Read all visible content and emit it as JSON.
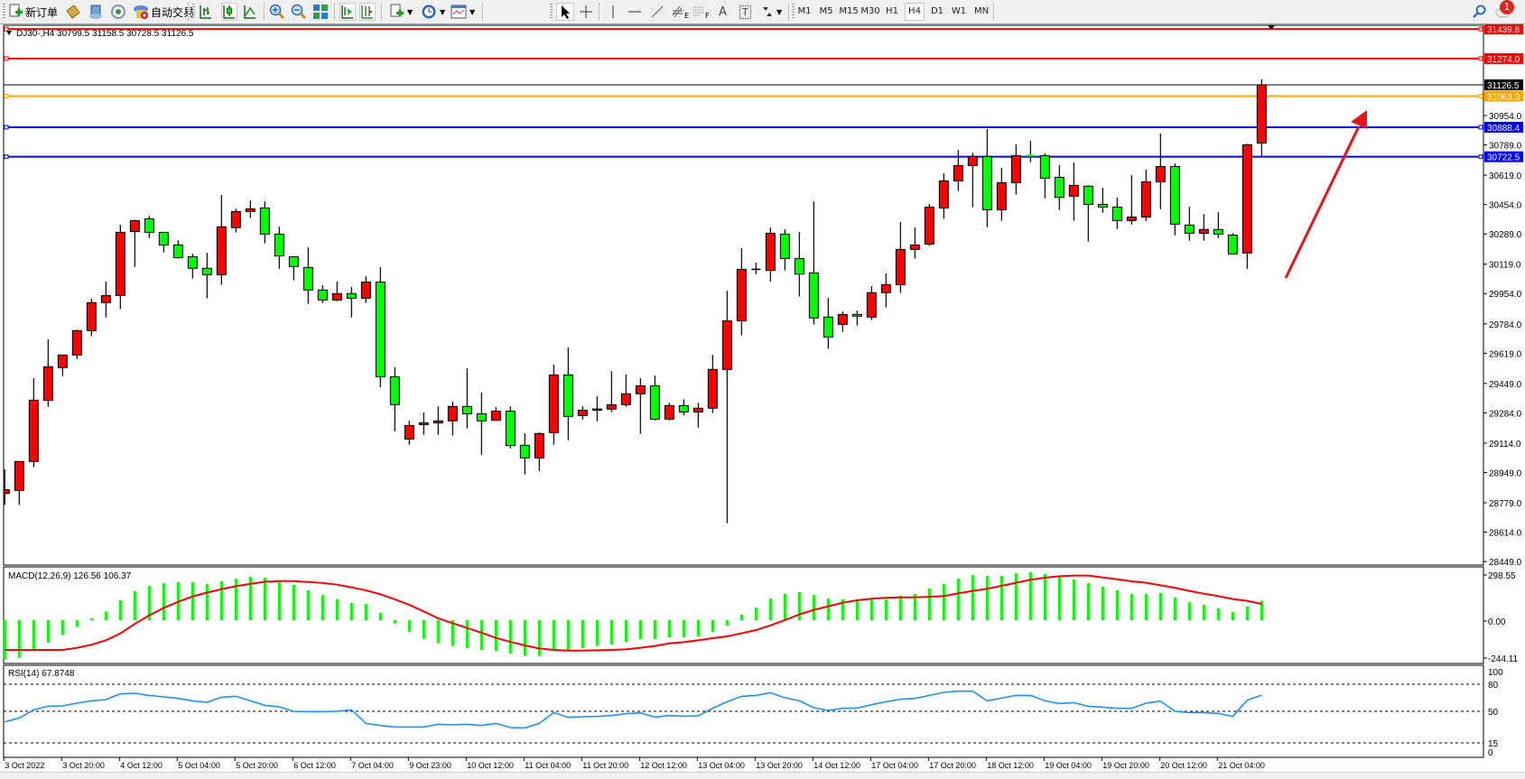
{
  "toolbar": {
    "new_order_label": "新订单",
    "auto_trading_label": "自动交易",
    "timeframes": [
      "M1",
      "M5",
      "M15",
      "M30",
      "H1",
      "H4",
      "D1",
      "W1",
      "MN"
    ],
    "active_timeframe": "H4",
    "fibo_e_label": "E",
    "fibo_f_label": "F",
    "text_tool_label": "A",
    "label_tool_label": "T",
    "notification_count": "1"
  },
  "chart_window": {
    "title": "DJ30-,H4  30799.5 31158.5 30728.5 31126.5",
    "macd_label": "MACD(12,26,9) 126.56 106.37",
    "rsi_label": "RSI(14) 67.8748"
  },
  "colors": {
    "bull_candle": "#ff0000",
    "bear_candle": "#00ff00",
    "macd_histogram": "#00ff00",
    "macd_signal": "#ff0000",
    "rsi_line": "#1e90ff",
    "arrow": "#e8141c"
  },
  "chart_data": [
    {
      "type": "candlestick",
      "symbol": "DJ30-",
      "timeframe": "H4",
      "ohlc_format": [
        "open",
        "high",
        "low",
        "close"
      ],
      "candles": [
        [
          28831,
          28967,
          28767,
          28853
        ],
        [
          28848,
          29011,
          28767,
          29011
        ],
        [
          29011,
          29479,
          28980,
          29355
        ],
        [
          29355,
          29697,
          29318,
          29543
        ],
        [
          29538,
          29609,
          29491,
          29609
        ],
        [
          29609,
          29752,
          29587,
          29746
        ],
        [
          29746,
          29925,
          29714,
          29903
        ],
        [
          29903,
          30021,
          29820,
          29943
        ],
        [
          29943,
          30341,
          29866,
          30298
        ],
        [
          30302,
          30369,
          30104,
          30364
        ],
        [
          30374,
          30390,
          30266,
          30298
        ],
        [
          30298,
          30298,
          30185,
          30227
        ],
        [
          30227,
          30254,
          30150,
          30156
        ],
        [
          30161,
          30178,
          30038,
          30096
        ],
        [
          30096,
          30183,
          29927,
          30060
        ],
        [
          30060,
          30508,
          30003,
          30329
        ],
        [
          30324,
          30430,
          30298,
          30415
        ],
        [
          30415,
          30477,
          30378,
          30430
        ],
        [
          30435,
          30472,
          30236,
          30288
        ],
        [
          30288,
          30330,
          30094,
          30166
        ],
        [
          30161,
          30161,
          30028,
          30106
        ],
        [
          30101,
          30214,
          29896,
          29974
        ],
        [
          29974,
          30001,
          29901,
          29918
        ],
        [
          29918,
          30021,
          29911,
          29954
        ],
        [
          29954,
          29992,
          29820,
          29928
        ],
        [
          29928,
          30052,
          29901,
          30019
        ],
        [
          30019,
          30102,
          29428,
          29487
        ],
        [
          29487,
          29540,
          29180,
          29330
        ],
        [
          29137,
          29240,
          29105,
          29213
        ],
        [
          29218,
          29286,
          29161,
          29228
        ],
        [
          29228,
          29321,
          29161,
          29239
        ],
        [
          29239,
          29347,
          29156,
          29320
        ],
        [
          29320,
          29534,
          29196,
          29279
        ],
        [
          29279,
          29398,
          29049,
          29239
        ],
        [
          29242,
          29316,
          29237,
          29294
        ],
        [
          29294,
          29321,
          29085,
          29100
        ],
        [
          29102,
          29169,
          28938,
          29031
        ],
        [
          29031,
          29173,
          28958,
          29168
        ],
        [
          29173,
          29555,
          29105,
          29497
        ],
        [
          29497,
          29651,
          29130,
          29264
        ],
        [
          29269,
          29321,
          29247,
          29299
        ],
        [
          29299,
          29377,
          29237,
          29306
        ],
        [
          29305,
          29519,
          29288,
          29330
        ],
        [
          29330,
          29499,
          29318,
          29391
        ],
        [
          29391,
          29479,
          29166,
          29436
        ],
        [
          29436,
          29494,
          29242,
          29249
        ],
        [
          29249,
          29340,
          29242,
          29325
        ],
        [
          29325,
          29360,
          29269,
          29289
        ],
        [
          29289,
          29340,
          29201,
          29310
        ],
        [
          29310,
          29610,
          29284,
          29528
        ],
        [
          29528,
          29970,
          28664,
          29801
        ],
        [
          29801,
          30209,
          29719,
          30090
        ],
        [
          30090,
          30128,
          30063,
          30090
        ],
        [
          30084,
          30325,
          30021,
          30293
        ],
        [
          30288,
          30315,
          30084,
          30151
        ],
        [
          30151,
          30300,
          29937,
          30063
        ],
        [
          30070,
          30472,
          29780,
          29817
        ],
        [
          29822,
          29930,
          29643,
          29710
        ],
        [
          29781,
          29854,
          29739,
          29837
        ],
        [
          29837,
          29859,
          29774,
          29827
        ],
        [
          29822,
          29996,
          29805,
          29959
        ],
        [
          29959,
          30067,
          29876,
          30004
        ],
        [
          30004,
          30356,
          29957,
          30202
        ],
        [
          30202,
          30325,
          30150,
          30227
        ],
        [
          30232,
          30457,
          30221,
          30440
        ],
        [
          30435,
          30630,
          30373,
          30587
        ],
        [
          30587,
          30761,
          30530,
          30673
        ],
        [
          30673,
          30746,
          30439,
          30724
        ],
        [
          30724,
          30878,
          30327,
          30425
        ],
        [
          30425,
          30660,
          30363,
          30577
        ],
        [
          30577,
          30792,
          30510,
          30729
        ],
        [
          30730,
          30812,
          30692,
          30729
        ],
        [
          30729,
          30741,
          30489,
          30602
        ],
        [
          30607,
          30675,
          30423,
          30494
        ],
        [
          30501,
          30690,
          30363,
          30562
        ],
        [
          30557,
          30562,
          30246,
          30455
        ],
        [
          30455,
          30548,
          30408,
          30440
        ],
        [
          30440,
          30493,
          30317,
          30364
        ],
        [
          30364,
          30619,
          30342,
          30384
        ],
        [
          30384,
          30650,
          30362,
          30582
        ],
        [
          30582,
          30853,
          30428,
          30668
        ],
        [
          30668,
          30685,
          30281,
          30344
        ],
        [
          30339,
          30442,
          30251,
          30293
        ],
        [
          30293,
          30401,
          30251,
          30314
        ],
        [
          30314,
          30411,
          30266,
          30288
        ],
        [
          30283,
          30293,
          30172,
          30177
        ],
        [
          30182,
          30795,
          30094,
          30790
        ],
        [
          30799.5,
          31158.5,
          30728.5,
          31126.5
        ]
      ],
      "price_ticks": [
        "30954.0",
        "30789.0",
        "30619.0",
        "30454.0",
        "30289.0",
        "30119.0",
        "29954.0",
        "29784.0",
        "29619.0",
        "29449.0",
        "29284.0",
        "29114.0",
        "28949.0",
        "28779.0",
        "28614.0",
        "28449.0"
      ],
      "ylim": [
        28430,
        31460
      ],
      "current_price": "31126.5",
      "levels": [
        {
          "price": "31439.8",
          "color": "#ff0000"
        },
        {
          "price": "31274.0",
          "color": "#ff0000"
        },
        {
          "price": "31063.3",
          "color": "#ffa500"
        },
        {
          "price": "30888.4",
          "color": "#0000ff"
        },
        {
          "price": "30722.5",
          "color": "#0000ff"
        }
      ],
      "time_labels": [
        "3 Oct 2022",
        "3 Oct 20:00",
        "4 Oct 12:00",
        "5 Oct 04:00",
        "5 Oct 20:00",
        "6 Oct 12:00",
        "7 Oct 04:00",
        "9 Oct 23:00",
        "10 Oct 12:00",
        "11 Oct 04:00",
        "11 Oct 20:00",
        "12 Oct 12:00",
        "13 Oct 04:00",
        "13 Oct 20:00",
        "14 Oct 12:00",
        "17 Oct 04:00",
        "17 Oct 20:00",
        "18 Oct 12:00",
        "19 Oct 04:00",
        "19 Oct 20:00",
        "20 Oct 12:00",
        "21 Oct 04:00"
      ],
      "time_label_every_bars": 4
    },
    {
      "type": "bar+line",
      "indicator": "MACD(12,26,9)",
      "axis_labels": [
        "298.55",
        "0.00",
        "-244.11"
      ],
      "ylim": [
        -244.11,
        298.55
      ],
      "histogram": [
        -254,
        -246,
        -195,
        -146,
        -98,
        -45,
        12,
        57,
        130,
        189,
        224,
        242,
        248,
        248,
        236,
        254,
        271,
        283,
        277,
        248,
        230,
        195,
        165,
        138,
        112,
        106,
        47,
        -22,
        -77,
        -122,
        -151,
        -169,
        -183,
        -195,
        -201,
        -218,
        -234,
        -234,
        -189,
        -195,
        -183,
        -169,
        -159,
        -142,
        -124,
        -124,
        -112,
        -112,
        -106,
        -77,
        -35,
        35,
        82,
        141,
        171,
        183,
        165,
        141,
        136,
        136,
        136,
        136,
        159,
        171,
        207,
        236,
        271,
        295,
        289,
        289,
        307,
        313,
        301,
        283,
        266,
        242,
        219,
        195,
        171,
        171,
        177,
        148,
        118,
        100,
        77,
        53,
        89,
        126.56
      ],
      "signal": [
        -195,
        -195,
        -195,
        -195,
        -195,
        -181,
        -161,
        -132,
        -87,
        -24,
        31,
        80,
        120,
        155,
        180,
        202,
        222,
        237,
        251,
        255,
        255,
        249,
        243,
        232,
        214,
        195,
        169,
        136,
        100,
        57,
        12,
        -20,
        -51,
        -82,
        -116,
        -142,
        -165,
        -185,
        -195,
        -199,
        -199,
        -197,
        -195,
        -191,
        -181,
        -169,
        -152,
        -144,
        -132,
        -118,
        -106,
        -86,
        -65,
        -34,
        0,
        37,
        67,
        90,
        114,
        130,
        140,
        146,
        149,
        149,
        153,
        157,
        175,
        191,
        205,
        224,
        244,
        264,
        277,
        287,
        291,
        291,
        279,
        267,
        254,
        244,
        228,
        211,
        191,
        173,
        157,
        138,
        126,
        106.37
      ]
    },
    {
      "type": "line",
      "indicator": "RSI(14)",
      "axis_labels": [
        "100",
        "80",
        "50",
        "15",
        "0"
      ],
      "levels": [
        80,
        50,
        15
      ],
      "ylim": [
        0,
        100
      ],
      "values": [
        38.3,
        42.6,
        51.6,
        55.6,
        56,
        59,
        61.6,
        63,
        69.3,
        70,
        67.6,
        66,
        64.3,
        61.6,
        60,
        65.6,
        66.6,
        61.6,
        56.6,
        55,
        50,
        49.6,
        49.6,
        50,
        51.6,
        36.6,
        34.3,
        32.6,
        32.6,
        32.6,
        35.6,
        35,
        35.6,
        34.3,
        36.6,
        32,
        31.6,
        36.6,
        48.6,
        43.3,
        44,
        44.3,
        45.3,
        47.3,
        48.3,
        43.6,
        45.3,
        44.6,
        45,
        53.3,
        60.6,
        66.6,
        67.6,
        70.6,
        65,
        61.6,
        54,
        51,
        53.3,
        53.6,
        57.3,
        60.6,
        63.3,
        64.3,
        67.6,
        71,
        72.3,
        72.3,
        61.6,
        64.6,
        67.6,
        67.6,
        61.6,
        58.6,
        59.6,
        55.6,
        54.6,
        53.3,
        53.3,
        59,
        61.3,
        50,
        48.6,
        48.6,
        47.6,
        44.3,
        62.3,
        67.87
      ]
    }
  ]
}
